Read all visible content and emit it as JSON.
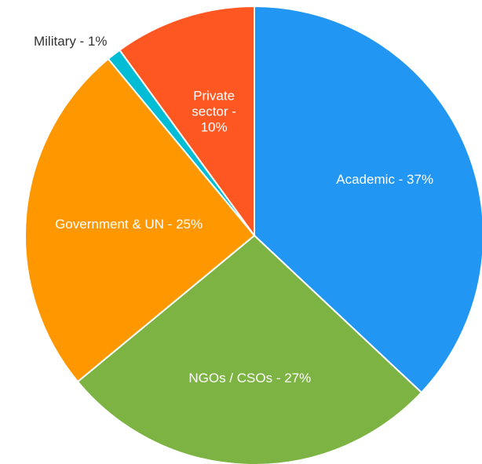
{
  "chart_data": {
    "type": "pie",
    "start_angle_deg": 0,
    "direction": "clockwise",
    "slices": [
      {
        "name": "Academic",
        "label_lines": [
          "Academic - 37%"
        ],
        "value": 37,
        "color": "#2196F3",
        "label_placement": "inside"
      },
      {
        "name": "NGOs / CSOs",
        "label_lines": [
          "NGOs / CSOs - 27%"
        ],
        "value": 27,
        "color": "#7CB342",
        "label_placement": "inside"
      },
      {
        "name": "Government & UN",
        "label_lines": [
          "Government & UN - 25%"
        ],
        "value": 25,
        "color": "#FF9800",
        "label_placement": "inside"
      },
      {
        "name": "Military",
        "label_lines": [
          "Military - 1%"
        ],
        "value": 1,
        "color": "#00BCD4",
        "label_placement": "outside"
      },
      {
        "name": "Private sector",
        "label_lines": [
          "Private",
          "sector -",
          "10%"
        ],
        "value": 10,
        "color": "#FF5722",
        "label_placement": "inside"
      }
    ]
  }
}
